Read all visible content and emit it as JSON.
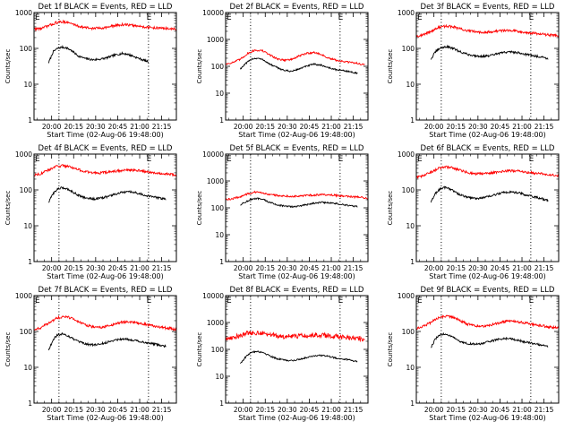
{
  "figure": {
    "y_axis_label": "Counts/sec",
    "x_axis_label": "Start Time (02-Aug-06 19:48:00)",
    "x_tick_labels": [
      "20:00",
      "20:15",
      "20:30",
      "20:45",
      "21:00",
      "21:15"
    ],
    "y_tick_labels": [
      "1",
      "10",
      "100",
      "1000"
    ],
    "marker_label": "E",
    "colors": {
      "events": "#000000",
      "lld": "#ff0000",
      "axes": "#000000",
      "vline": "#000000"
    }
  },
  "chart_data": [
    {
      "type": "line",
      "title": "Det 1f BLACK = Events, RED = LLD",
      "yscale": "log",
      "ylim": [
        1,
        1000
      ],
      "xlim_minutes": [
        0,
        97
      ],
      "xlabel": "Start Time (02-Aug-06 19:48:00)",
      "ylabel": "Counts/sec",
      "vlines_minutes": [
        17,
        78
      ],
      "markers": [
        {
          "label": "E",
          "x_minutes": 0
        },
        {
          "label": "E",
          "x_minutes": 76
        }
      ],
      "series": [
        {
          "name": "Events",
          "color": "#000000",
          "x_minutes": [
            10,
            13,
            16,
            19,
            22,
            25,
            30,
            35,
            40,
            45,
            50,
            55,
            60,
            63,
            66,
            70,
            74,
            78
          ],
          "y": [
            40,
            80,
            100,
            108,
            104,
            90,
            62,
            52,
            48,
            50,
            55,
            65,
            72,
            70,
            64,
            55,
            48,
            42
          ]
        },
        {
          "name": "LLD",
          "color": "#ff0000",
          "x_minutes": [
            0,
            5,
            10,
            15,
            20,
            25,
            30,
            35,
            40,
            45,
            50,
            55,
            60,
            65,
            70,
            75,
            80,
            85,
            90,
            97
          ],
          "y": [
            350,
            360,
            430,
            520,
            560,
            500,
            420,
            380,
            360,
            370,
            390,
            430,
            460,
            450,
            420,
            400,
            380,
            370,
            360,
            340
          ]
        }
      ]
    },
    {
      "type": "line",
      "title": "Det 2f BLACK = Events, RED = LLD",
      "yscale": "log",
      "ylim": [
        1,
        10000
      ],
      "xlim_minutes": [
        0,
        97
      ],
      "xlabel": "Start Time (02-Aug-06 19:48:00)",
      "ylabel": "Counts/sec",
      "vlines_minutes": [
        17,
        78
      ],
      "markers": [
        {
          "label": "E",
          "x_minutes": 0
        },
        {
          "label": "E",
          "x_minutes": 76
        }
      ],
      "series": [
        {
          "name": "Events",
          "color": "#000000",
          "x_minutes": [
            10,
            14,
            18,
            22,
            26,
            30,
            35,
            40,
            45,
            50,
            55,
            60,
            65,
            70,
            75,
            80,
            85,
            90
          ],
          "y": [
            80,
            130,
            190,
            200,
            170,
            120,
            90,
            70,
            65,
            80,
            100,
            120,
            110,
            90,
            75,
            70,
            62,
            55
          ]
        },
        {
          "name": "LLD",
          "color": "#ff0000",
          "x_minutes": [
            0,
            5,
            10,
            15,
            20,
            25,
            30,
            35,
            40,
            45,
            50,
            55,
            60,
            65,
            70,
            75,
            80,
            85,
            90,
            95
          ],
          "y": [
            120,
            140,
            180,
            300,
            400,
            380,
            270,
            190,
            170,
            180,
            240,
            300,
            330,
            280,
            200,
            170,
            150,
            140,
            130,
            110
          ]
        }
      ]
    },
    {
      "type": "line",
      "title": "Det 3f BLACK = Events, RED = LLD",
      "yscale": "log",
      "ylim": [
        1,
        1000
      ],
      "xlim_minutes": [
        0,
        97
      ],
      "xlabel": "Start Time (02-Aug-06 19:48:00)",
      "ylabel": "Counts/sec",
      "vlines_minutes": [
        17,
        78
      ],
      "markers": [
        {
          "label": "E",
          "x_minutes": 0
        },
        {
          "label": "E",
          "x_minutes": 76
        }
      ],
      "series": [
        {
          "name": "Events",
          "color": "#000000",
          "x_minutes": [
            10,
            13,
            16,
            19,
            22,
            25,
            30,
            35,
            40,
            45,
            50,
            55,
            60,
            65,
            70,
            75,
            80,
            85,
            90
          ],
          "y": [
            50,
            80,
            100,
            110,
            110,
            100,
            80,
            68,
            62,
            60,
            62,
            70,
            78,
            80,
            75,
            68,
            62,
            58,
            52
          ]
        },
        {
          "name": "LLD",
          "color": "#ff0000",
          "x_minutes": [
            0,
            5,
            10,
            15,
            20,
            25,
            30,
            35,
            40,
            45,
            50,
            55,
            60,
            65,
            70,
            75,
            80,
            85,
            90,
            97
          ],
          "y": [
            220,
            240,
            300,
            380,
            420,
            400,
            350,
            310,
            290,
            285,
            290,
            300,
            320,
            320,
            300,
            280,
            265,
            250,
            240,
            225
          ]
        }
      ]
    },
    {
      "type": "line",
      "title": "Det 4f BLACK = Events, RED = LLD",
      "yscale": "log",
      "ylim": [
        1,
        1000
      ],
      "xlim_minutes": [
        0,
        97
      ],
      "xlabel": "Start Time (02-Aug-06 19:48:00)",
      "ylabel": "Counts/sec",
      "vlines_minutes": [
        17,
        78
      ],
      "markers": [
        {
          "label": "E",
          "x_minutes": 0
        },
        {
          "label": "E",
          "x_minutes": 76
        }
      ],
      "series": [
        {
          "name": "Events",
          "color": "#000000",
          "x_minutes": [
            10,
            13,
            16,
            19,
            22,
            25,
            30,
            35,
            40,
            45,
            50,
            55,
            60,
            65,
            70,
            75,
            80,
            85,
            90
          ],
          "y": [
            45,
            80,
            105,
            115,
            110,
            95,
            72,
            60,
            56,
            58,
            65,
            75,
            85,
            88,
            82,
            72,
            65,
            60,
            55
          ]
        },
        {
          "name": "LLD",
          "color": "#ff0000",
          "x_minutes": [
            0,
            5,
            10,
            15,
            20,
            25,
            30,
            35,
            40,
            45,
            50,
            55,
            60,
            65,
            70,
            75,
            80,
            85,
            90,
            97
          ],
          "y": [
            260,
            290,
            360,
            450,
            480,
            440,
            370,
            320,
            300,
            300,
            310,
            330,
            350,
            360,
            350,
            330,
            310,
            295,
            280,
            265
          ]
        }
      ]
    },
    {
      "type": "line",
      "title": "Det 5f BLACK = Events, RED = LLD",
      "yscale": "log",
      "ylim": [
        1,
        10000
      ],
      "xlim_minutes": [
        0,
        97
      ],
      "xlabel": "Start Time (02-Aug-06 19:48:00)",
      "ylabel": "Counts/sec",
      "vlines_minutes": [
        17,
        78
      ],
      "markers": [
        {
          "label": "E",
          "x_minutes": 0
        },
        {
          "label": "E",
          "x_minutes": 76
        }
      ],
      "series": [
        {
          "name": "Events",
          "color": "#000000",
          "x_minutes": [
            10,
            14,
            18,
            22,
            26,
            30,
            35,
            40,
            45,
            50,
            55,
            60,
            65,
            70,
            75,
            80,
            85,
            90
          ],
          "y": [
            130,
            170,
            210,
            220,
            200,
            160,
            130,
            115,
            110,
            115,
            130,
            150,
            160,
            155,
            145,
            130,
            120,
            110
          ]
        },
        {
          "name": "LLD",
          "color": "#ff0000",
          "x_minutes": [
            0,
            5,
            10,
            15,
            20,
            25,
            30,
            35,
            40,
            45,
            50,
            55,
            60,
            65,
            70,
            75,
            80,
            85,
            90,
            97
          ],
          "y": [
            200,
            220,
            260,
            330,
            380,
            360,
            320,
            290,
            275,
            270,
            275,
            285,
            300,
            310,
            305,
            290,
            275,
            260,
            250,
            230
          ]
        }
      ]
    },
    {
      "type": "line",
      "title": "Det 6f BLACK = Events, RED = LLD",
      "yscale": "log",
      "ylim": [
        1,
        1000
      ],
      "xlim_minutes": [
        0,
        97
      ],
      "xlabel": "Start Time (02-Aug-06 19:48:00)",
      "ylabel": "Counts/sec",
      "vlines_minutes": [
        17,
        78
      ],
      "markers": [
        {
          "label": "E",
          "x_minutes": 0
        },
        {
          "label": "E",
          "x_minutes": 76
        }
      ],
      "series": [
        {
          "name": "Events",
          "color": "#000000",
          "x_minutes": [
            10,
            13,
            16,
            19,
            22,
            25,
            30,
            35,
            40,
            45,
            50,
            55,
            60,
            65,
            70,
            75,
            80,
            85,
            90
          ],
          "y": [
            45,
            80,
            105,
            118,
            112,
            95,
            72,
            62,
            58,
            60,
            66,
            76,
            86,
            88,
            82,
            72,
            64,
            58,
            50
          ]
        },
        {
          "name": "LLD",
          "color": "#ff0000",
          "x_minutes": [
            0,
            5,
            10,
            15,
            20,
            25,
            30,
            35,
            40,
            45,
            50,
            55,
            60,
            65,
            70,
            75,
            80,
            85,
            90,
            97
          ],
          "y": [
            220,
            250,
            310,
            400,
            440,
            410,
            350,
            305,
            285,
            285,
            295,
            315,
            335,
            345,
            335,
            315,
            295,
            280,
            265,
            250
          ]
        }
      ]
    },
    {
      "type": "line",
      "title": "Det 7f BLACK = Events, RED = LLD",
      "yscale": "log",
      "ylim": [
        1,
        1000
      ],
      "xlim_minutes": [
        0,
        97
      ],
      "xlabel": "Start Time (02-Aug-06 19:48:00)",
      "ylabel": "Counts/sec",
      "vlines_minutes": [
        17,
        78
      ],
      "markers": [
        {
          "label": "E",
          "x_minutes": 0
        },
        {
          "label": "E",
          "x_minutes": 76
        }
      ],
      "series": [
        {
          "name": "Events",
          "color": "#000000",
          "x_minutes": [
            10,
            13,
            16,
            19,
            22,
            25,
            30,
            35,
            40,
            45,
            50,
            55,
            60,
            65,
            70,
            75,
            80,
            85,
            90
          ],
          "y": [
            30,
            60,
            80,
            85,
            80,
            68,
            52,
            45,
            42,
            44,
            50,
            58,
            62,
            60,
            55,
            50,
            46,
            42,
            38
          ]
        },
        {
          "name": "LLD",
          "color": "#ff0000",
          "x_minutes": [
            0,
            5,
            10,
            15,
            20,
            25,
            30,
            35,
            40,
            45,
            50,
            55,
            60,
            65,
            70,
            75,
            80,
            85,
            90,
            97
          ],
          "y": [
            110,
            130,
            170,
            230,
            260,
            240,
            190,
            150,
            135,
            130,
            140,
            160,
            180,
            185,
            175,
            160,
            145,
            135,
            125,
            115
          ]
        }
      ]
    },
    {
      "type": "line",
      "title": "Det 8f BLACK = Events, RED = LLD",
      "yscale": "log",
      "ylim": [
        1,
        10000
      ],
      "xlim_minutes": [
        0,
        97
      ],
      "xlabel": "Start Time (02-Aug-06 19:48:00)",
      "ylabel": "Counts/sec",
      "vlines_minutes": [
        17,
        78
      ],
      "markers": [
        {
          "label": "E",
          "x_minutes": 0
        },
        {
          "label": "E",
          "x_minutes": 76
        }
      ],
      "series": [
        {
          "name": "Events",
          "color": "#000000",
          "x_minutes": [
            10,
            14,
            18,
            22,
            26,
            30,
            35,
            40,
            45,
            50,
            55,
            60,
            65,
            70,
            75,
            80,
            85,
            90
          ],
          "y": [
            30,
            55,
            80,
            85,
            75,
            58,
            45,
            40,
            38,
            42,
            50,
            58,
            60,
            55,
            48,
            44,
            40,
            36
          ]
        },
        {
          "name": "LLD",
          "color": "#ff0000",
          "x_minutes": [
            0,
            5,
            10,
            15,
            20,
            25,
            30,
            35,
            40,
            45,
            50,
            55,
            60,
            65,
            70,
            75,
            80,
            85,
            90,
            95
          ],
          "y": [
            250,
            280,
            330,
            400,
            420,
            400,
            360,
            320,
            300,
            300,
            310,
            330,
            345,
            340,
            320,
            300,
            280,
            270,
            260,
            240
          ]
        }
      ]
    },
    {
      "type": "line",
      "title": "Det 9f BLACK = Events, RED = LLD",
      "yscale": "log",
      "ylim": [
        1,
        1000
      ],
      "xlim_minutes": [
        0,
        97
      ],
      "xlabel": "Start Time (02-Aug-06 19:48:00)",
      "ylabel": "Counts/sec",
      "vlines_minutes": [
        17,
        78
      ],
      "markers": [
        {
          "label": "E",
          "x_minutes": 0
        },
        {
          "label": "E",
          "x_minutes": 76
        }
      ],
      "series": [
        {
          "name": "Events",
          "color": "#000000",
          "x_minutes": [
            10,
            13,
            16,
            19,
            22,
            25,
            30,
            35,
            40,
            45,
            50,
            55,
            60,
            65,
            70,
            75,
            80,
            85,
            90
          ],
          "y": [
            35,
            62,
            80,
            85,
            80,
            68,
            52,
            46,
            44,
            46,
            52,
            60,
            64,
            62,
            56,
            50,
            46,
            42,
            38
          ]
        },
        {
          "name": "LLD",
          "color": "#ff0000",
          "x_minutes": [
            0,
            5,
            10,
            15,
            20,
            25,
            30,
            35,
            40,
            45,
            50,
            55,
            60,
            65,
            70,
            75,
            80,
            85,
            90,
            97
          ],
          "y": [
            120,
            140,
            180,
            240,
            270,
            250,
            200,
            160,
            145,
            140,
            150,
            170,
            190,
            195,
            185,
            170,
            155,
            145,
            135,
            125
          ]
        }
      ]
    }
  ]
}
